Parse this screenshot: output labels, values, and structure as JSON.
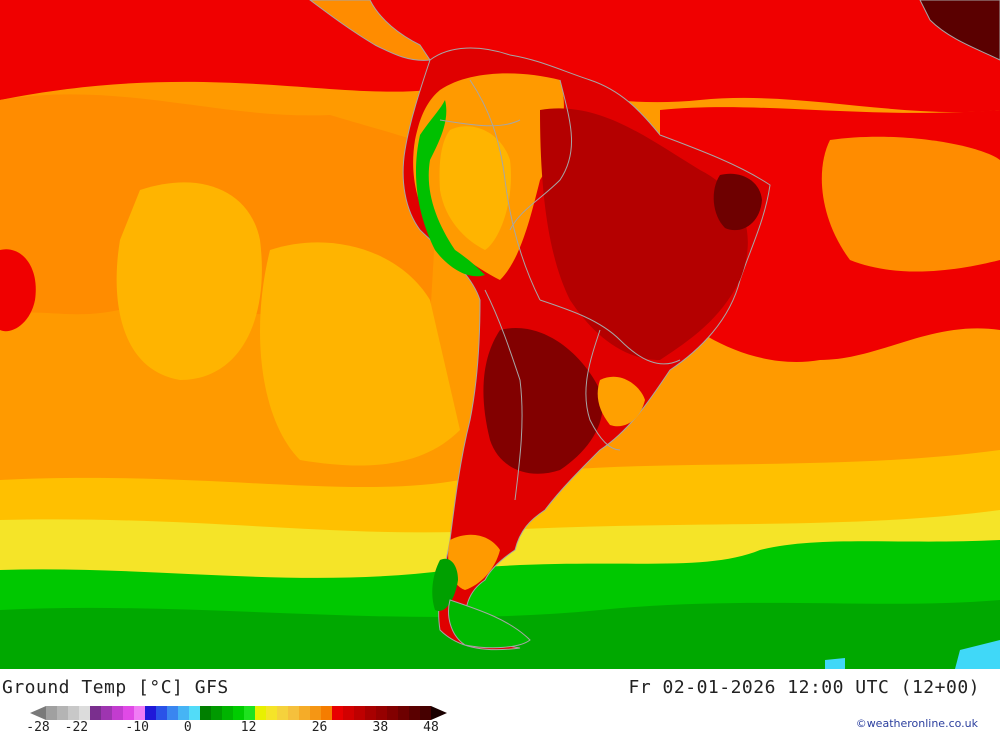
{
  "header": {
    "title_left": "Ground Temp [°C] GFS",
    "title_right": "Fr 02-01-2026 12:00 UTC (12+00)"
  },
  "legend": {
    "colors": [
      "#a0a0a0",
      "#b4b4b4",
      "#c8c8c8",
      "#dcdcdc",
      "#7a2f8e",
      "#9e35b0",
      "#c23ccf",
      "#e04ae6",
      "#f07cf5",
      "#2018d8",
      "#2a52e8",
      "#3a86f0",
      "#46b4f5",
      "#52dcf8",
      "#007f00",
      "#009a00",
      "#00b400",
      "#00cc00",
      "#1ee21e",
      "#e8f000",
      "#f5e428",
      "#f5d23c",
      "#f5c03c",
      "#f5ac28",
      "#f59614",
      "#f57d00",
      "#e80000",
      "#d20000",
      "#be0000",
      "#a80000",
      "#960000",
      "#820000",
      "#6e0000",
      "#5a0000",
      "#460000"
    ],
    "tick_labels": [
      "-28",
      "-22",
      "-10",
      "0",
      "12",
      "26",
      "38",
      "48"
    ],
    "tick_values": [
      -28,
      -22,
      -10,
      0,
      12,
      26,
      38,
      48
    ]
  },
  "credit": "©weatheronline.co.uk",
  "map_colors": {
    "land_boundary": "#a6a6a6",
    "hot_dark": "#7a0000",
    "hot": "#e00000",
    "warm": "#ff7a00",
    "mild": "#ffb000",
    "cool": "#f5e800",
    "cold": "#00c800",
    "colder": "#00a400",
    "ice": "#40d8f8"
  }
}
